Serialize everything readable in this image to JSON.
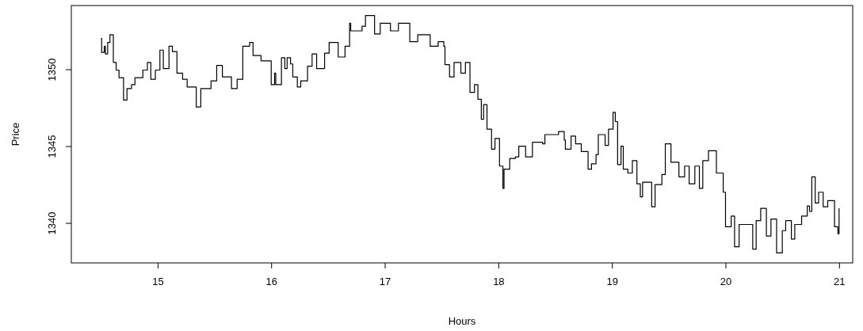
{
  "chart_data": {
    "type": "step",
    "xlabel": "Hours",
    "ylabel": "Price",
    "xlim": [
      14.24,
      21.12
    ],
    "ylim": [
      1337.4,
      1354.15
    ],
    "xticks": [
      15,
      16,
      17,
      18,
      19,
      20,
      21
    ],
    "yticks": [
      1340,
      1345,
      1350
    ],
    "grid": false,
    "marker": "none",
    "line_style": "solid",
    "series": [
      {
        "color": "#000000",
        "x": [
          14.5,
          14.507,
          14.53,
          14.54,
          14.56,
          14.58,
          14.61,
          14.635,
          14.66,
          14.7,
          14.73,
          14.77,
          14.8,
          14.87,
          14.91,
          14.94,
          14.98,
          15.02,
          15.05,
          15.1,
          15.13,
          15.17,
          15.22,
          15.26,
          15.34,
          15.38,
          15.47,
          15.52,
          15.57,
          15.65,
          15.7,
          15.75,
          15.81,
          15.84,
          15.91,
          16.0,
          16.03,
          16.04,
          16.09,
          16.12,
          16.14,
          16.17,
          16.19,
          16.23,
          16.26,
          16.32,
          16.36,
          16.4,
          16.47,
          16.51,
          16.59,
          16.65,
          16.69,
          16.7,
          16.8,
          16.83,
          16.91,
          16.96,
          17.05,
          17.12,
          17.22,
          17.29,
          17.4,
          17.47,
          17.52,
          17.53,
          17.57,
          17.61,
          17.67,
          17.71,
          17.75,
          17.79,
          17.82,
          17.85,
          17.87,
          17.9,
          17.94,
          17.97,
          18.01,
          18.04,
          18.05,
          18.1,
          18.15,
          18.18,
          18.24,
          18.3,
          18.39,
          18.41,
          18.53,
          18.58,
          18.59,
          18.64,
          18.68,
          18.73,
          18.79,
          18.82,
          18.86,
          18.88,
          18.94,
          18.97,
          19.01,
          19.03,
          19.05,
          19.08,
          19.1,
          19.14,
          19.18,
          19.22,
          19.25,
          19.27,
          19.35,
          19.38,
          19.44,
          19.47,
          19.52,
          19.59,
          19.64,
          19.68,
          19.73,
          19.77,
          19.8,
          19.85,
          19.92,
          19.98,
          20.0,
          20.05,
          20.08,
          20.12,
          20.18,
          20.24,
          20.27,
          20.31,
          20.36,
          20.4,
          20.45,
          20.5,
          20.53,
          20.58,
          20.61,
          20.67,
          20.72,
          20.74,
          20.76,
          20.79,
          20.82,
          20.86,
          20.9,
          20.96,
          20.99,
          21.0
        ],
        "values": [
          1352.0,
          1351.1,
          1351.5,
          1351.0,
          1351.75,
          1352.25,
          1350.45,
          1349.95,
          1349.45,
          1348.0,
          1348.75,
          1349.0,
          1349.45,
          1349.95,
          1350.45,
          1349.35,
          1349.95,
          1351.25,
          1350.05,
          1351.5,
          1351.15,
          1349.75,
          1349.35,
          1348.85,
          1347.55,
          1348.75,
          1349.25,
          1350.25,
          1349.5,
          1348.75,
          1349.35,
          1351.5,
          1351.75,
          1350.9,
          1350.55,
          1349.0,
          1349.75,
          1349.0,
          1350.75,
          1350.05,
          1350.75,
          1350.35,
          1349.5,
          1348.85,
          1349.25,
          1350.2,
          1351.0,
          1350.05,
          1351.05,
          1351.75,
          1350.8,
          1351.5,
          1353.0,
          1352.5,
          1352.8,
          1353.5,
          1352.3,
          1353.0,
          1352.5,
          1353.0,
          1351.8,
          1352.25,
          1351.5,
          1351.8,
          1351.5,
          1350.3,
          1349.5,
          1350.45,
          1349.75,
          1350.45,
          1348.5,
          1349.0,
          1348.05,
          1346.75,
          1347.7,
          1346.1,
          1344.8,
          1345.5,
          1343.7,
          1342.25,
          1343.5,
          1344.2,
          1344.3,
          1345.0,
          1344.3,
          1345.25,
          1345.15,
          1345.75,
          1345.95,
          1345.4,
          1344.8,
          1345.65,
          1345.15,
          1344.65,
          1343.5,
          1343.85,
          1344.45,
          1345.75,
          1345.05,
          1346.1,
          1347.2,
          1346.6,
          1343.8,
          1345.0,
          1343.5,
          1343.25,
          1344.05,
          1342.55,
          1341.7,
          1342.65,
          1341.05,
          1342.5,
          1343.15,
          1345.15,
          1343.95,
          1343.0,
          1343.7,
          1342.55,
          1343.7,
          1342.25,
          1344.05,
          1344.7,
          1343.25,
          1342.0,
          1339.75,
          1340.45,
          1338.45,
          1339.9,
          1339.9,
          1338.3,
          1340.15,
          1340.95,
          1339.15,
          1340.25,
          1338.05,
          1339.5,
          1340.15,
          1338.95,
          1339.9,
          1340.45,
          1341.1,
          1340.75,
          1343.0,
          1341.3,
          1342.0,
          1341.05,
          1341.45,
          1339.75,
          1339.3,
          1340.95
        ]
      }
    ]
  }
}
